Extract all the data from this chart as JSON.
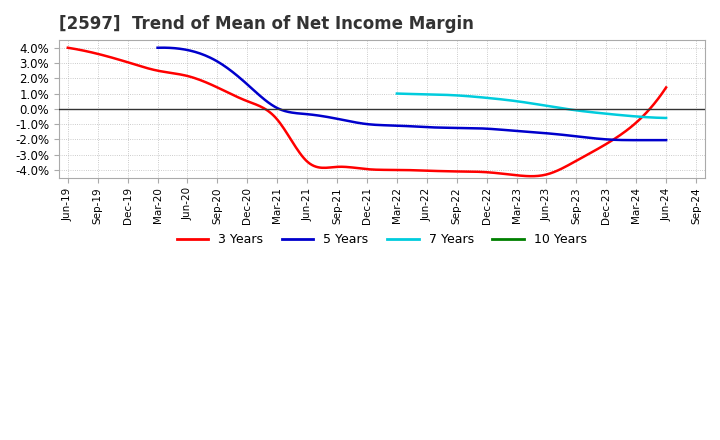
{
  "title": "[2597]  Trend of Mean of Net Income Margin",
  "background_color": "#ffffff",
  "plot_background_color": "#ffffff",
  "grid_color": "#aaaaaa",
  "ylim": [
    -4.5,
    4.5
  ],
  "yticks": [
    -4.0,
    -3.0,
    -2.0,
    -1.0,
    0.0,
    1.0,
    2.0,
    3.0,
    4.0
  ],
  "series": {
    "3yr": {
      "color": "#ff0000",
      "label": "3 Years",
      "y": [
        4.0,
        3.6,
        3.05,
        2.5,
        2.15,
        1.4,
        0.5,
        -0.7,
        -3.45,
        -3.8,
        -3.95,
        -4.0,
        -4.05,
        -4.1,
        -4.15,
        -4.35,
        -4.3,
        -3.4,
        -2.3,
        -0.9,
        1.4,
        null
      ]
    },
    "5yr": {
      "color": "#0000cc",
      "label": "5 Years",
      "y": [
        null,
        null,
        null,
        4.0,
        3.85,
        3.1,
        1.6,
        0.05,
        -0.35,
        -0.65,
        -1.0,
        -1.1,
        -1.2,
        -1.25,
        -1.3,
        -1.45,
        -1.6,
        -1.8,
        -2.0,
        -2.05,
        -2.05,
        null
      ]
    },
    "7yr": {
      "color": "#00ccdd",
      "label": "7 Years",
      "y": [
        null,
        null,
        null,
        null,
        null,
        null,
        null,
        null,
        null,
        null,
        null,
        1.0,
        0.95,
        0.88,
        0.72,
        0.5,
        0.2,
        -0.1,
        -0.32,
        -0.5,
        -0.6,
        null
      ]
    },
    "10yr": {
      "color": "#008000",
      "label": "10 Years",
      "y": [
        null,
        null,
        null,
        null,
        null,
        null,
        null,
        null,
        null,
        null,
        null,
        null,
        null,
        null,
        null,
        null,
        null,
        null,
        null,
        null,
        null,
        null
      ]
    }
  },
  "xtick_labels": [
    "Jun-19",
    "Sep-19",
    "Dec-19",
    "Mar-20",
    "Jun-20",
    "Sep-20",
    "Dec-20",
    "Mar-21",
    "Jun-21",
    "Sep-21",
    "Dec-21",
    "Mar-22",
    "Jun-22",
    "Sep-22",
    "Dec-22",
    "Mar-23",
    "Jun-23",
    "Sep-23",
    "Dec-23",
    "Mar-24",
    "Jun-24",
    "Sep-24"
  ],
  "legend_colors": [
    "#ff0000",
    "#0000cc",
    "#00ccdd",
    "#008000"
  ],
  "legend_labels": [
    "3 Years",
    "5 Years",
    "7 Years",
    "10 Years"
  ]
}
